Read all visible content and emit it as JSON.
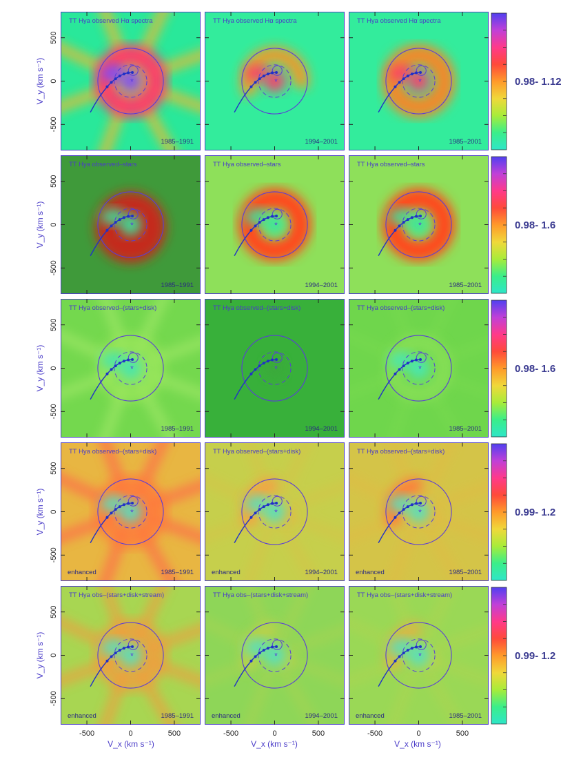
{
  "figure": {
    "ylabel": "V_y (km s⁻¹)",
    "xlabel": "V_x (km s⁻¹)",
    "x_ticks": [
      -500,
      0,
      500
    ],
    "y_ticks": [
      500,
      0,
      -500
    ],
    "xlim": [
      -800,
      800
    ],
    "ylim": [
      -800,
      800
    ]
  },
  "chart_data": {
    "type": "heatmap",
    "rows": [
      {
        "scale_range": "0.98- 1.12",
        "panels": [
          {
            "title": "TT Hya   observed Hα spectra",
            "period": "1985–1991",
            "enhanced": "",
            "style": "spokes",
            "bg": "#29e89a",
            "ring": "#ff3a6a",
            "core": "#7a4bff",
            "spoke": "#f7b52c",
            "spoke_alpha": 0.85,
            "ring_alpha": 0.95
          },
          {
            "title": "TT Hya   observed Hα spectra",
            "period": "1994–2001",
            "enhanced": "",
            "style": "partial",
            "bg": "#33ec9c",
            "ring": "#f29a2c",
            "core": "#ff3a6a",
            "spoke": "#9be04a",
            "spoke_alpha": 0.0,
            "ring_alpha": 0.95
          },
          {
            "title": "TT Hya   observed Hα spectra",
            "period": "1985–2001",
            "enhanced": "",
            "style": "ring",
            "bg": "#33ec9c",
            "ring": "#f08a2a",
            "core": "#ff3a6a",
            "spoke": "#9be04a",
            "spoke_alpha": 0.0,
            "ring_alpha": 1.0
          }
        ]
      },
      {
        "scale_range": "0.98- 1.6",
        "panels": [
          {
            "title": "TT Hya   observed–stars",
            "period": "1985–1991",
            "enhanced": "",
            "style": "blob",
            "bg": "#3f9a3a",
            "ring": "#c42c1a",
            "core": "#39e6a0",
            "spoke": "#c42c1a",
            "spoke_alpha": 0.0,
            "ring_alpha": 1.0
          },
          {
            "title": "TT Hya   observed–stars",
            "period": "1994–2001",
            "enhanced": "",
            "style": "ring",
            "bg": "#8ee05a",
            "ring": "#ff4a1e",
            "core": "#39e6a0",
            "spoke": "#c6e84a",
            "spoke_alpha": 0.0,
            "ring_alpha": 1.0
          },
          {
            "title": "TT Hya   observed–stars",
            "period": "1985–2001",
            "enhanced": "",
            "style": "ring",
            "bg": "#8ee05a",
            "ring": "#ff4a1e",
            "core": "#39e6a0",
            "spoke": "#c6e84a",
            "spoke_alpha": 0.0,
            "ring_alpha": 1.0
          }
        ]
      },
      {
        "scale_range": "0.98- 1.6",
        "panels": [
          {
            "title": "TT Hya   observed–(stars+disk)",
            "period": "1985–1991",
            "enhanced": "",
            "style": "faint",
            "bg": "#74d84e",
            "ring": "#9ae65a",
            "core": "#43e6b0",
            "spoke": "#a6ea6a",
            "spoke_alpha": 0.7,
            "ring_alpha": 0.8
          },
          {
            "title": "TT Hya   observed–(stars+disk)",
            "period": "1994–2001",
            "enhanced": "",
            "style": "flat",
            "bg": "#38b03a",
            "ring": "#3ab43c",
            "core": "#3aa83a",
            "spoke": "#3ab43c",
            "spoke_alpha": 0.0,
            "ring_alpha": 0.4
          },
          {
            "title": "TT Hya   observed–(stars+disk)",
            "period": "1985–2001",
            "enhanced": "",
            "style": "faint",
            "bg": "#6fd64c",
            "ring": "#8ee25a",
            "core": "#46e8b8",
            "spoke": "#8ee25a",
            "spoke_alpha": 0.2,
            "ring_alpha": 0.7
          }
        ]
      },
      {
        "scale_range": "0.99- 1.2",
        "panels": [
          {
            "title": "TT Hya   observed–(stars+disk)",
            "period": "1985–1991",
            "enhanced": "enhanced",
            "style": "spokes",
            "bg": "#e8b642",
            "ring": "#ff7a3a",
            "core": "#55e0c0",
            "spoke": "#ff6a4a",
            "spoke_alpha": 0.85,
            "ring_alpha": 0.8
          },
          {
            "title": "TT Hya   observed–(stars+disk)",
            "period": "1994–2001",
            "enhanced": "enhanced",
            "style": "arc",
            "bg": "#c6cf4c",
            "ring": "#f5a044",
            "core": "#55e0c0",
            "spoke": "#e8b642",
            "spoke_alpha": 0.3,
            "ring_alpha": 0.9
          },
          {
            "title": "TT Hya   observed–(stars+disk)",
            "period": "1985–2001",
            "enhanced": "enhanced",
            "style": "arc",
            "bg": "#d4c448",
            "ring": "#ff7a3a",
            "core": "#55e0c0",
            "spoke": "#e8b642",
            "spoke_alpha": 0.4,
            "ring_alpha": 0.95
          }
        ]
      },
      {
        "scale_range": "0.99- 1.2",
        "panels": [
          {
            "title": "TT Hya   obs–(stars+disk+stream)",
            "period": "1985–1991",
            "enhanced": "enhanced",
            "style": "spokes",
            "bg": "#a8d652",
            "ring": "#f59a3c",
            "core": "#55e0c0",
            "spoke": "#f59a3c",
            "spoke_alpha": 0.75,
            "ring_alpha": 0.7
          },
          {
            "title": "TT Hya   obs–(stars+disk+stream)",
            "period": "1994–2001",
            "enhanced": "enhanced",
            "style": "arc",
            "bg": "#8ed658",
            "ring": "#c6d04a",
            "core": "#55e0c0",
            "spoke": "#c6d04a",
            "spoke_alpha": 0.3,
            "ring_alpha": 0.7
          },
          {
            "title": "TT Hya   obs–(stars+disk+stream)",
            "period": "1985–2001",
            "enhanced": "enhanced",
            "style": "arc",
            "bg": "#9ad856",
            "ring": "#e2b244",
            "core": "#55e0c0",
            "spoke": "#c6d04a",
            "spoke_alpha": 0.3,
            "ring_alpha": 0.85
          }
        ]
      }
    ]
  },
  "colors": {
    "frame": "#4a3cc8",
    "overlay": "#5a3cd8",
    "stream": "#2030c8",
    "label_text": "#4a3cc8",
    "colorbar": [
      "#2ee6c8",
      "#3aee8a",
      "#a8ec3a",
      "#f0d83a",
      "#ff9a2a",
      "#ff4a3a",
      "#ff3a8a",
      "#c040d8",
      "#5040f0"
    ]
  }
}
